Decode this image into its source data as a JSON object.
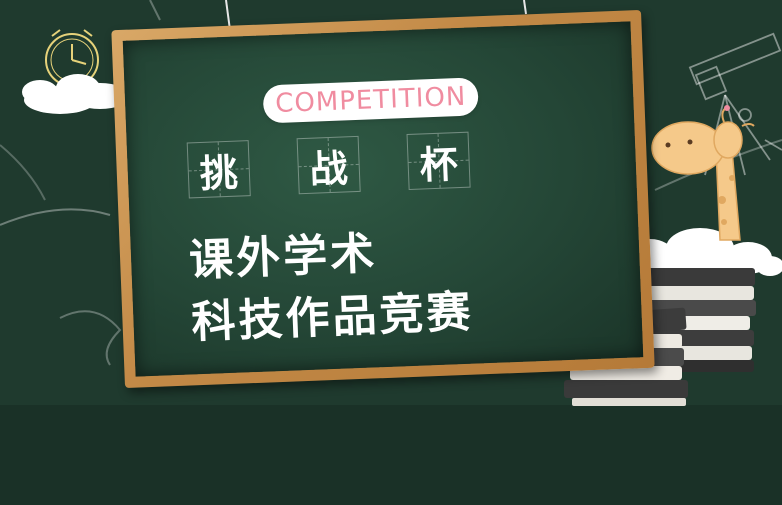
{
  "board": {
    "badge": "COMPETITION",
    "cells": [
      "挑",
      "战",
      "杯"
    ],
    "title_line_1": "课外学术",
    "title_line_2": "科技作品竞赛"
  },
  "colors": {
    "chalkboard": "#244636",
    "background": "#1f3a2e",
    "frame": "#c38a47",
    "badge_text": "#f08ca0",
    "chalk": "#ffffff",
    "giraffe": "#f5c98a"
  },
  "icons": [
    "clock-icon",
    "telescope-icon",
    "giraffe-icon"
  ]
}
